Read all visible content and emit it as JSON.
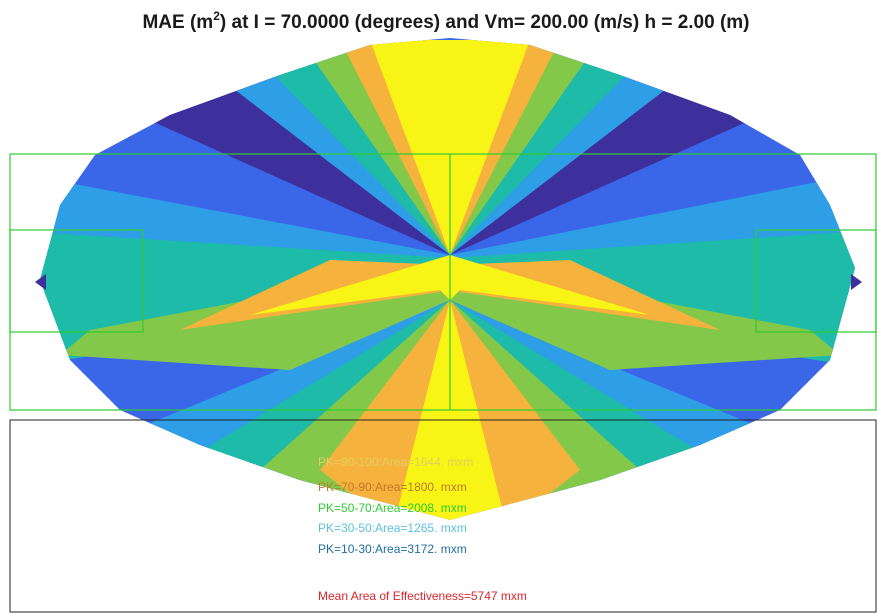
{
  "chart_data": {
    "type": "heatmap",
    "title": {
      "prefix": "MAE (m",
      "superscript": "2",
      "suffix": ") at I = 70.0000 (degrees) and Vm= 200.00 (m/s) h = 2.00 (m)"
    },
    "xlabel": "",
    "ylabel": "",
    "grid": false,
    "colors": {
      "dark_blue": "#3d2f9c",
      "blue": "#3a66e8",
      "light_blue": "#2e9ee6",
      "teal": "#1dbba8",
      "green": "#84c84a",
      "orange": "#f5b23d",
      "yellow": "#f7f416",
      "target_outline": "#2ecc2e"
    },
    "legend": [
      {
        "text": "PK=90-100:Area=1644. mxm",
        "color": "#e0d060"
      },
      {
        "text": "PK=70-90:Area=1800. mxm",
        "color": "#c07a2a"
      },
      {
        "text": "PK=50-70:Area=2008. mxm",
        "color": "#2ecc2e"
      },
      {
        "text": "PK=30-50:Area=1265. mxm",
        "color": "#5bc0de"
      },
      {
        "text": "PK=10-30:Area=3172. mxm",
        "color": "#1f6f9f"
      }
    ],
    "mean_area": {
      "text": "Mean Area of Effectiveness=5747 mxm",
      "color": "#d9262b"
    }
  }
}
